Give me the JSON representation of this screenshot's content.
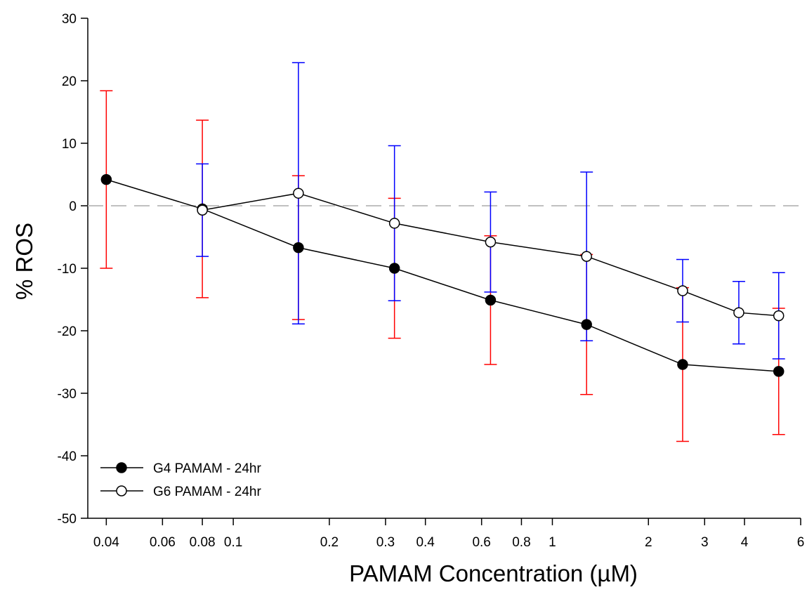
{
  "chart_data": {
    "type": "scatter",
    "title": "",
    "xlabel": "PAMAM Concentration (µM)",
    "ylabel": "% ROS",
    "xscale": "log",
    "xlim": [
      0.035,
      6
    ],
    "ylim": [
      -50,
      30
    ],
    "x_ticks": [
      0.04,
      0.06,
      0.08,
      0.1,
      0.2,
      0.3,
      0.4,
      0.6,
      0.8,
      1,
      2,
      3,
      4,
      6
    ],
    "x_tick_labels": [
      "0.04",
      "0.06",
      "0.08",
      "0.1",
      "0.2",
      "0.3",
      "0.4",
      "0.6",
      "0.8",
      "1",
      "2",
      "3",
      "4",
      "6"
    ],
    "y_ticks": [
      -50,
      -40,
      -30,
      -20,
      -10,
      0,
      10,
      20,
      30
    ],
    "y_tick_labels": [
      "-50",
      "-40",
      "-30",
      "-20",
      "-10",
      "0",
      "10",
      "20",
      "30"
    ],
    "reference_line": {
      "y": 0,
      "style": "dashed",
      "color": "#c0c0c0"
    },
    "grid": false,
    "legend_position": "bottom-left",
    "series": [
      {
        "name": "G4 PAMAM - 24hr",
        "marker": "filled-circle",
        "line_color": "#000000",
        "errorbar_color": "#ff0000",
        "x": [
          0.04,
          0.08,
          0.16,
          0.32,
          0.64,
          1.28,
          2.56,
          5.12
        ],
        "y": [
          4.2,
          -0.5,
          -6.7,
          -10.0,
          -15.1,
          -19.0,
          -25.4,
          -26.5
        ],
        "error": [
          14.2,
          14.2,
          11.5,
          11.2,
          10.3,
          11.2,
          12.3,
          10.1
        ]
      },
      {
        "name": "G6 PAMAM - 24hr",
        "marker": "open-circle",
        "line_color": "#000000",
        "errorbar_color": "#0000ff",
        "x": [
          0.08,
          0.16,
          0.32,
          0.64,
          1.28,
          2.56,
          3.84,
          5.12
        ],
        "y": [
          -0.7,
          2.0,
          -2.8,
          -5.8,
          -8.1,
          -13.6,
          -17.1,
          -17.6
        ],
        "error": [
          7.4,
          20.9,
          12.4,
          8.0,
          13.5,
          5.0,
          5.0,
          6.9
        ]
      }
    ]
  }
}
